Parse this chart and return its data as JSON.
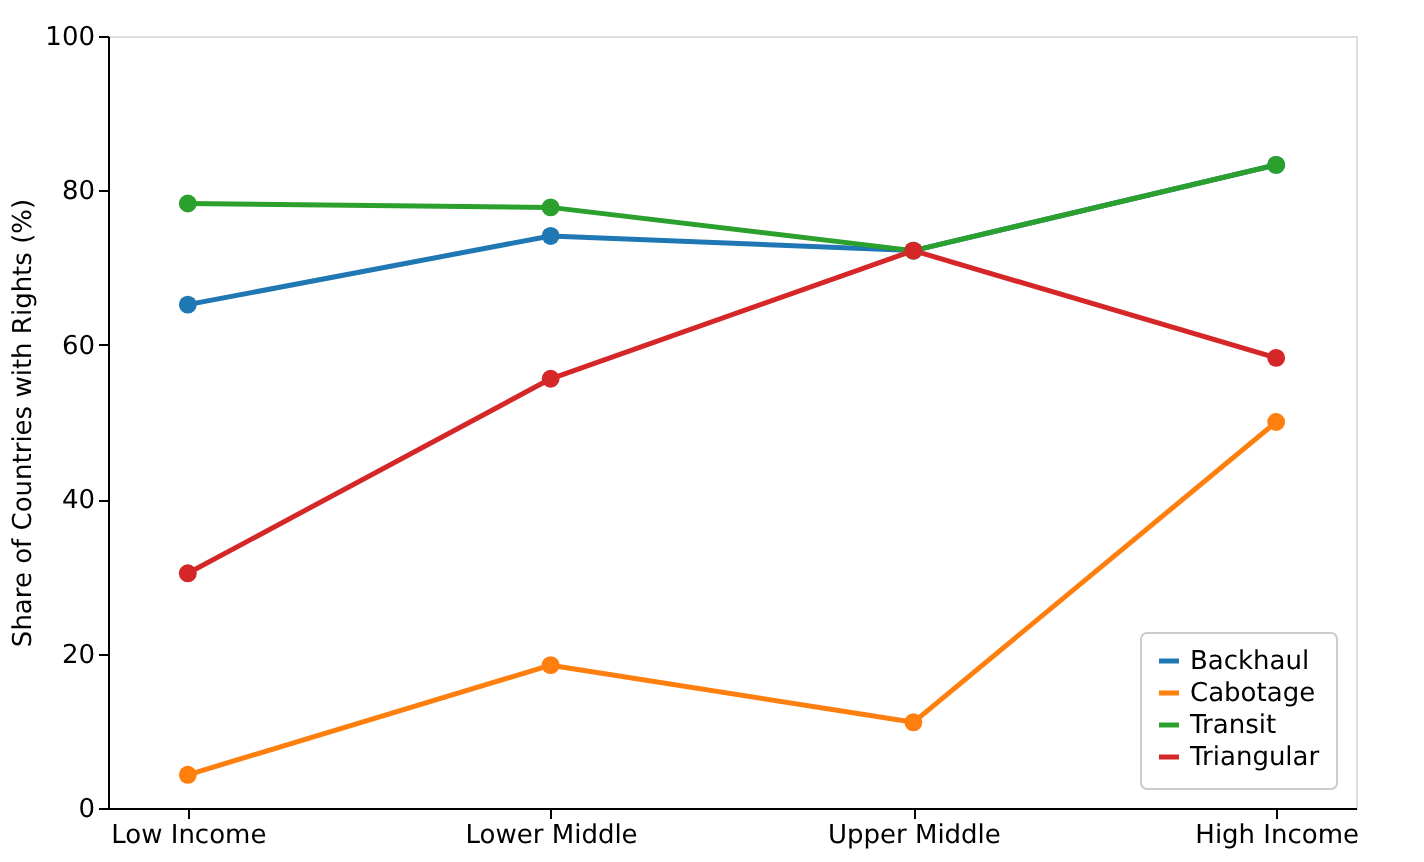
{
  "chart_data": {
    "type": "line",
    "ylabel": "Share of Countries with Rights (%)",
    "categories": [
      "Low Income",
      "Lower Middle",
      "Upper Middle",
      "High Income"
    ],
    "series": [
      {
        "name": "Backhaul",
        "color": "#1f77b4",
        "values": [
          65.2,
          74.1,
          72.2,
          83.3
        ]
      },
      {
        "name": "Cabotage",
        "color": "#ff7f0e",
        "values": [
          4.3,
          18.5,
          11.1,
          50.0
        ]
      },
      {
        "name": "Transit",
        "color": "#2ca02c",
        "values": [
          78.3,
          77.8,
          72.2,
          83.3
        ]
      },
      {
        "name": "Triangular",
        "color": "#d62728",
        "values": [
          30.4,
          55.6,
          72.2,
          58.3
        ]
      }
    ],
    "ylim": [
      0,
      100
    ],
    "yticks": [
      0,
      20,
      40,
      60,
      80,
      100
    ],
    "grid": false,
    "legend": "bottom right",
    "marker": "circle",
    "line_style": "solid"
  }
}
